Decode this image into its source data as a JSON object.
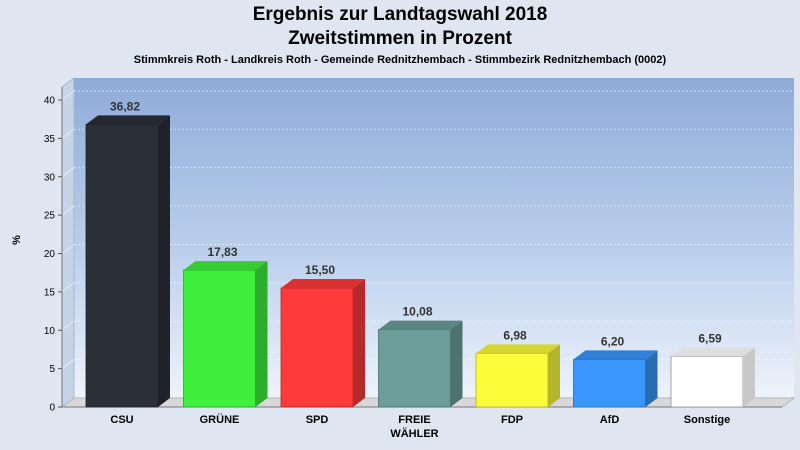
{
  "header": {
    "title_line1": "Ergebnis zur Landtagswahl 2018",
    "title_line2": "Zweitstimmen in Prozent",
    "subtitle": "Stimmkreis Roth - Landkreis Roth - Gemeinde Rednitzhembach - Stimmbezirk Rednitzhembach (0002)"
  },
  "chart_data": {
    "type": "bar",
    "title": "Ergebnis zur Landtagswahl 2018 / Zweitstimmen in Prozent",
    "xlabel": "",
    "ylabel": "%",
    "ylim": [
      0,
      40
    ],
    "yticks": [
      0,
      5,
      10,
      15,
      20,
      25,
      30,
      35,
      40
    ],
    "grid": true,
    "categories": [
      "CSU",
      "GRÜNE",
      "SPD",
      "FREIE WÄHLER",
      "FDP",
      "AfD",
      "Sonstige"
    ],
    "category_lines": [
      [
        "CSU"
      ],
      [
        "GRÜNE"
      ],
      [
        "SPD"
      ],
      [
        "FREIE",
        "WÄHLER"
      ],
      [
        "FDP"
      ],
      [
        "AfD"
      ],
      [
        "Sonstige"
      ]
    ],
    "values": [
      36.82,
      17.83,
      15.5,
      10.08,
      6.98,
      6.2,
      6.59
    ],
    "value_labels": [
      "36,82",
      "17,83",
      "15,50",
      "10,08",
      "6,98",
      "6,20",
      "6,59"
    ],
    "colors": [
      "#2b2f38",
      "#3ef03c",
      "#fe3a3a",
      "#6b9e9a",
      "#fcfc3a",
      "#3a96fa",
      "#ffffff"
    ]
  }
}
